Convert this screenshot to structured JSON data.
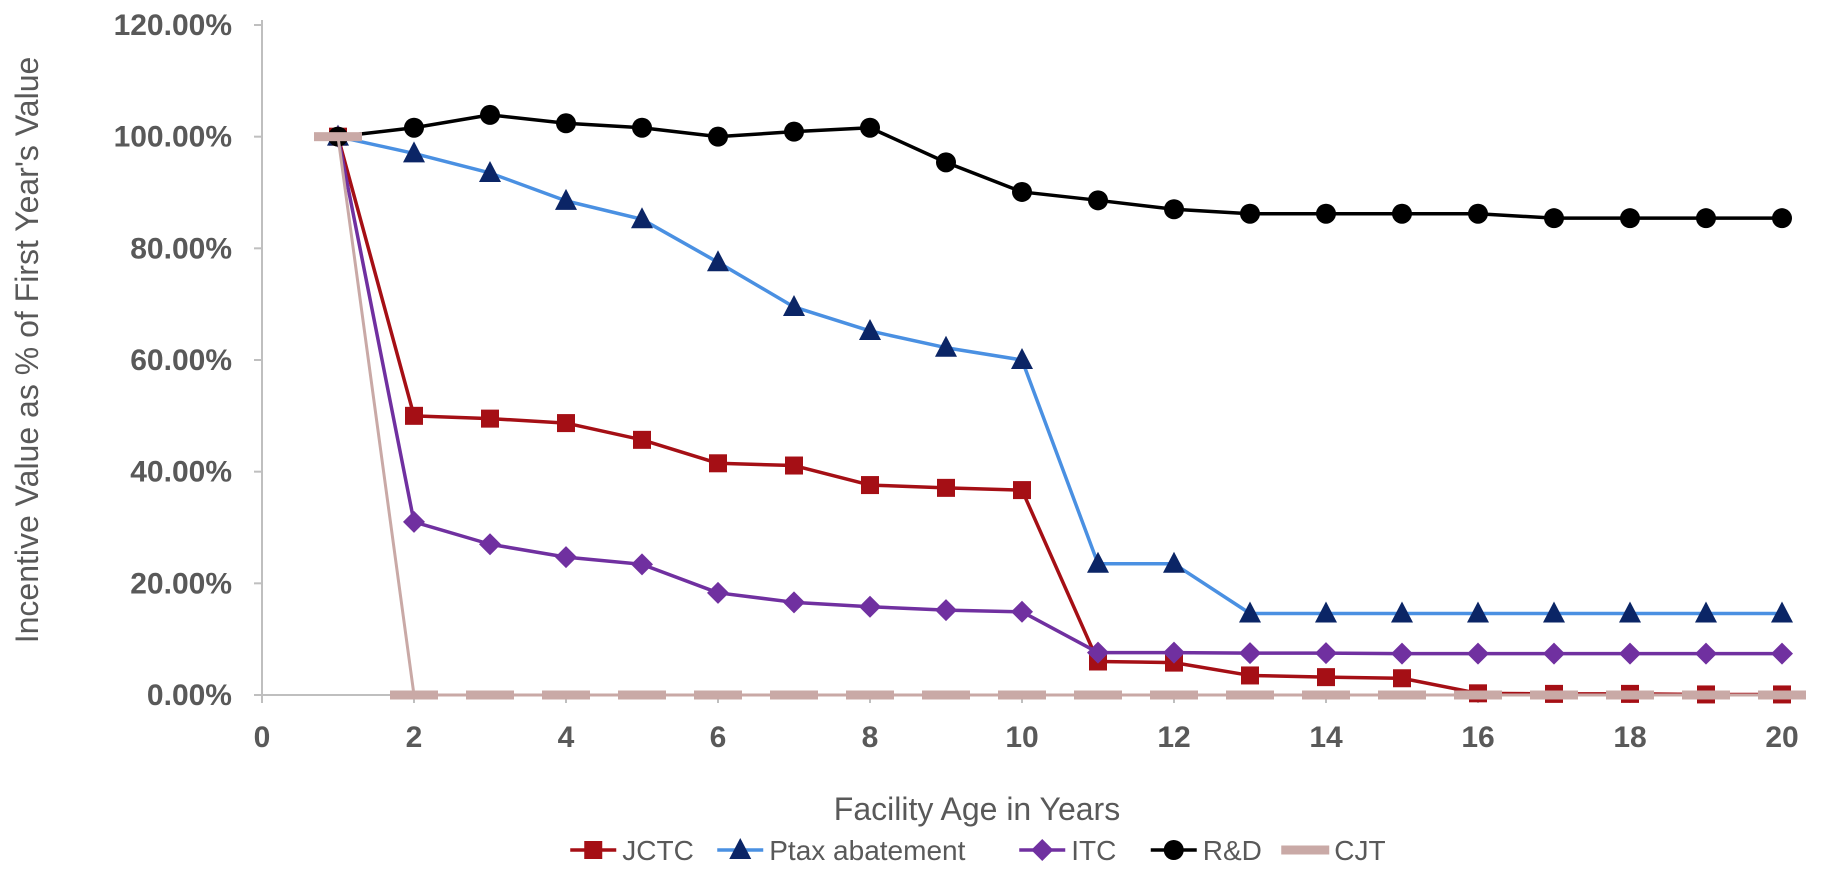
{
  "chart_data": {
    "type": "line",
    "title": "",
    "xlabel": "Facility Age in Years",
    "ylabel": "Incentive Value as % of First Year's Value",
    "xlim": [
      0,
      20
    ],
    "ylim": [
      0,
      120
    ],
    "x_ticks": [
      0,
      2,
      4,
      6,
      8,
      10,
      12,
      14,
      16,
      18,
      20
    ],
    "x_tick_labels": [
      "0",
      "2",
      "4",
      "6",
      "8",
      "10",
      "12",
      "14",
      "16",
      "18",
      "20"
    ],
    "y_ticks": [
      0,
      20,
      40,
      60,
      80,
      100,
      120
    ],
    "y_tick_labels": [
      "0.00%",
      "20.00%",
      "40.00%",
      "60.00%",
      "80.00%",
      "100.00%",
      "120.00%"
    ],
    "grid": false,
    "legend_position": "bottom",
    "x": [
      1,
      2,
      3,
      4,
      5,
      6,
      7,
      8,
      9,
      10,
      11,
      12,
      13,
      14,
      15,
      16,
      17,
      18,
      19,
      20
    ],
    "series": [
      {
        "name": "JCTC",
        "color": "#a50f15",
        "marker": "square",
        "values": [
          100,
          50,
          49.5,
          48.7,
          45.7,
          41.5,
          41.1,
          37.6,
          37.1,
          36.7,
          6,
          5.8,
          3.5,
          3.2,
          3,
          0.3,
          0.2,
          0.2,
          0.1,
          0.1
        ]
      },
      {
        "name": "Ptax abatement",
        "color": "#4a90e2",
        "markerColor": "#0b2566",
        "marker": "triangle",
        "values": [
          100,
          97,
          93.5,
          88.5,
          85.2,
          77.5,
          69.5,
          65.2,
          62.2,
          60,
          23.5,
          23.5,
          14.6,
          14.6,
          14.6,
          14.6,
          14.6,
          14.6,
          14.6,
          14.6
        ]
      },
      {
        "name": "ITC",
        "color": "#7030a0",
        "marker": "diamond",
        "values": [
          100,
          31,
          27,
          24.7,
          23.4,
          18.3,
          16.6,
          15.8,
          15.2,
          14.9,
          7.6,
          7.6,
          7.5,
          7.5,
          7.4,
          7.4,
          7.4,
          7.4,
          7.4,
          7.4
        ]
      },
      {
        "name": "R&D",
        "color": "#000000",
        "marker": "circle",
        "values": [
          100,
          101.6,
          103.9,
          102.4,
          101.6,
          100,
          100.9,
          101.6,
          95.4,
          90.1,
          88.6,
          87,
          86.2,
          86.2,
          86.2,
          86.2,
          85.4,
          85.4,
          85.4,
          85.4
        ]
      },
      {
        "name": "CJT",
        "color": "#c9a9a6",
        "marker": "dash",
        "values": [
          100,
          0,
          0,
          0,
          0,
          0,
          0,
          0,
          0,
          0,
          0,
          0,
          0,
          0,
          0,
          0,
          0,
          0,
          0,
          0
        ]
      }
    ]
  }
}
